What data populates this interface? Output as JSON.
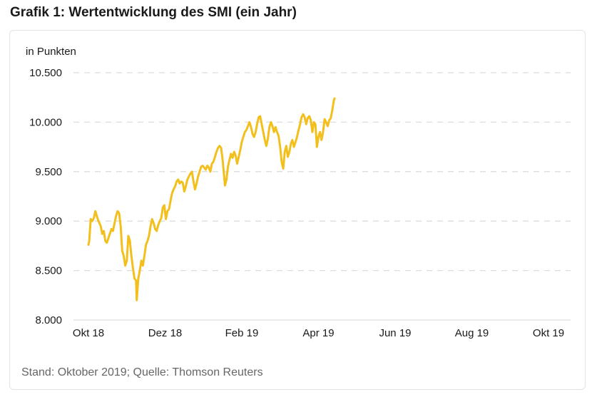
{
  "title": "Grafik 1: Wertentwicklung des SMI (ein Jahr)",
  "source": "Stand: Oktober 2019; Quelle: Thomson Reuters",
  "colors": {
    "line": "#F2BF1C",
    "grid": "#dcdcdc",
    "text": "#1a1a1a",
    "source": "#666666"
  },
  "chart_data": {
    "type": "line",
    "title": "",
    "ylabel": "in Punkten",
    "xlabel": "",
    "ylim": [
      8000,
      10500
    ],
    "yticks": [
      "10.500",
      "10.000",
      "9.500",
      "9.000",
      "8.500",
      "8.000"
    ],
    "ytick_values": [
      10500,
      10000,
      9500,
      9000,
      8500,
      8000
    ],
    "xticks": [
      "Okt 18",
      "Dez 18",
      "Feb 19",
      "Apr 19",
      "Jun 19",
      "Aug 19",
      "Okt 19"
    ],
    "grid": "horizontal dashed",
    "legend": "none",
    "series": [
      {
        "points": [
          [
            0.0,
            8760
          ],
          [
            0.01,
            8800
          ],
          [
            0.03,
            9020
          ],
          [
            0.05,
            9000
          ],
          [
            0.07,
            9030
          ],
          [
            0.09,
            9100
          ],
          [
            0.11,
            9050
          ],
          [
            0.13,
            9000
          ],
          [
            0.16,
            8950
          ],
          [
            0.18,
            8870
          ],
          [
            0.2,
            8900
          ],
          [
            0.22,
            8800
          ],
          [
            0.24,
            8780
          ],
          [
            0.27,
            8850
          ],
          [
            0.3,
            8920
          ],
          [
            0.32,
            8900
          ],
          [
            0.34,
            8980
          ],
          [
            0.36,
            9050
          ],
          [
            0.38,
            9100
          ],
          [
            0.4,
            9080
          ],
          [
            0.42,
            8950
          ],
          [
            0.44,
            8700
          ],
          [
            0.46,
            8650
          ],
          [
            0.48,
            8550
          ],
          [
            0.5,
            8600
          ],
          [
            0.52,
            8850
          ],
          [
            0.54,
            8800
          ],
          [
            0.56,
            8650
          ],
          [
            0.58,
            8530
          ],
          [
            0.6,
            8420
          ],
          [
            0.62,
            8400
          ],
          [
            0.63,
            8200
          ],
          [
            0.65,
            8420
          ],
          [
            0.67,
            8500
          ],
          [
            0.69,
            8600
          ],
          [
            0.71,
            8550
          ],
          [
            0.73,
            8650
          ],
          [
            0.75,
            8760
          ],
          [
            0.77,
            8800
          ],
          [
            0.79,
            8850
          ],
          [
            0.81,
            8950
          ],
          [
            0.83,
            9020
          ],
          [
            0.85,
            8980
          ],
          [
            0.87,
            8920
          ],
          [
            0.89,
            8900
          ],
          [
            0.91,
            8960
          ],
          [
            0.93,
            9000
          ],
          [
            0.95,
            9030
          ],
          [
            0.97,
            9140
          ],
          [
            0.99,
            9160
          ],
          [
            1.01,
            9020
          ],
          [
            1.03,
            9100
          ],
          [
            1.05,
            9120
          ],
          [
            1.07,
            9200
          ],
          [
            1.09,
            9280
          ],
          [
            1.11,
            9320
          ],
          [
            1.13,
            9350
          ],
          [
            1.15,
            9400
          ],
          [
            1.17,
            9420
          ],
          [
            1.19,
            9380
          ],
          [
            1.21,
            9400
          ],
          [
            1.23,
            9390
          ],
          [
            1.25,
            9300
          ],
          [
            1.27,
            9350
          ],
          [
            1.29,
            9420
          ],
          [
            1.31,
            9450
          ],
          [
            1.33,
            9480
          ],
          [
            1.35,
            9500
          ],
          [
            1.37,
            9400
          ],
          [
            1.39,
            9320
          ],
          [
            1.41,
            9380
          ],
          [
            1.43,
            9450
          ],
          [
            1.45,
            9500
          ],
          [
            1.47,
            9550
          ],
          [
            1.49,
            9560
          ],
          [
            1.51,
            9540
          ],
          [
            1.53,
            9520
          ],
          [
            1.55,
            9560
          ],
          [
            1.57,
            9540
          ],
          [
            1.59,
            9500
          ],
          [
            1.61,
            9580
          ],
          [
            1.63,
            9600
          ],
          [
            1.65,
            9650
          ],
          [
            1.67,
            9700
          ],
          [
            1.69,
            9740
          ],
          [
            1.71,
            9760
          ],
          [
            1.73,
            9740
          ],
          [
            1.75,
            9620
          ],
          [
            1.77,
            9450
          ],
          [
            1.78,
            9360
          ],
          [
            1.8,
            9420
          ],
          [
            1.82,
            9550
          ],
          [
            1.84,
            9620
          ],
          [
            1.86,
            9680
          ],
          [
            1.88,
            9640
          ],
          [
            1.9,
            9700
          ],
          [
            1.92,
            9660
          ],
          [
            1.94,
            9580
          ],
          [
            1.96,
            9650
          ],
          [
            1.98,
            9720
          ],
          [
            2.0,
            9800
          ],
          [
            2.02,
            9850
          ],
          [
            2.04,
            9900
          ],
          [
            2.06,
            9920
          ],
          [
            2.08,
            9960
          ],
          [
            2.1,
            10000
          ],
          [
            2.12,
            9950
          ],
          [
            2.14,
            9880
          ],
          [
            2.16,
            9850
          ],
          [
            2.18,
            9900
          ],
          [
            2.2,
            9980
          ],
          [
            2.22,
            10050
          ],
          [
            2.24,
            10060
          ],
          [
            2.26,
            9980
          ],
          [
            2.28,
            9900
          ],
          [
            2.3,
            9820
          ],
          [
            2.32,
            9760
          ],
          [
            2.34,
            9830
          ],
          [
            2.36,
            9950
          ],
          [
            2.38,
            10000
          ],
          [
            2.4,
            9960
          ],
          [
            2.42,
            9900
          ],
          [
            2.44,
            9950
          ],
          [
            2.46,
            9900
          ],
          [
            2.48,
            9860
          ],
          [
            2.5,
            9750
          ],
          [
            2.52,
            9600
          ],
          [
            2.54,
            9530
          ],
          [
            2.56,
            9700
          ],
          [
            2.58,
            9760
          ],
          [
            2.6,
            9650
          ],
          [
            2.62,
            9700
          ],
          [
            2.64,
            9780
          ],
          [
            2.66,
            9820
          ],
          [
            2.68,
            9750
          ],
          [
            2.7,
            9800
          ],
          [
            2.72,
            9850
          ],
          [
            2.74,
            9920
          ],
          [
            2.76,
            9980
          ],
          [
            2.78,
            10050
          ],
          [
            2.8,
            10080
          ],
          [
            2.82,
            10050
          ],
          [
            2.84,
            9980
          ],
          [
            2.86,
            10040
          ],
          [
            2.88,
            10060
          ],
          [
            2.9,
            10020
          ],
          [
            2.92,
            9900
          ],
          [
            2.94,
            10000
          ],
          [
            2.96,
            9980
          ],
          [
            2.98,
            9750
          ],
          [
            3.0,
            9850
          ],
          [
            3.02,
            9900
          ],
          [
            3.04,
            9820
          ],
          [
            3.06,
            9900
          ],
          [
            3.08,
            10030
          ],
          [
            3.1,
            10000
          ],
          [
            3.12,
            9960
          ],
          [
            3.14,
            10020
          ],
          [
            3.16,
            10040
          ],
          [
            3.18,
            10120
          ],
          [
            3.2,
            10220
          ],
          [
            3.21,
            10240
          ]
        ]
      }
    ]
  }
}
